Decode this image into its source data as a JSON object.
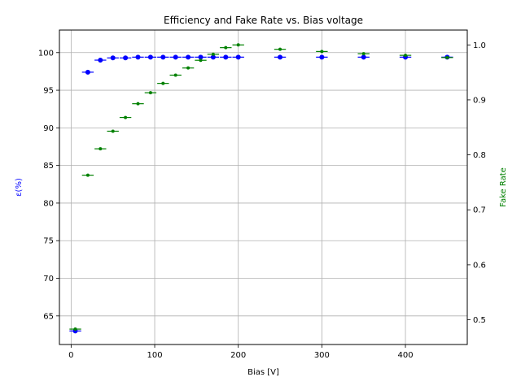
{
  "chart_data": {
    "type": "scatter",
    "title": "Efficiency and Fake Rate vs. Bias voltage",
    "xlabel": "Bias [V]",
    "ylabel_left": "ε(%)",
    "ylabel_right": "Fake Rate",
    "xlim": [
      -14,
      474
    ],
    "ylim_left": [
      61.2,
      103.0
    ],
    "ylim_right": [
      0.455,
      1.027
    ],
    "x_ticks": [
      0,
      100,
      200,
      300,
      400
    ],
    "y_left_ticks": [
      65,
      70,
      75,
      80,
      85,
      90,
      95,
      100
    ],
    "y_right_ticks": [
      0.5,
      0.6,
      0.7,
      0.8,
      0.9,
      1.0
    ],
    "grid": true,
    "series": [
      {
        "axis": "left",
        "color": "#0000ff",
        "marker": "circle",
        "points": [
          {
            "x": 5,
            "y": 63.0
          },
          {
            "x": 20,
            "y": 97.4
          },
          {
            "x": 35,
            "y": 99.0
          },
          {
            "x": 50,
            "y": 99.3
          },
          {
            "x": 65,
            "y": 99.3
          },
          {
            "x": 80,
            "y": 99.4
          },
          {
            "x": 95,
            "y": 99.4
          },
          {
            "x": 110,
            "y": 99.4
          },
          {
            "x": 125,
            "y": 99.4
          },
          {
            "x": 140,
            "y": 99.4
          },
          {
            "x": 155,
            "y": 99.4
          },
          {
            "x": 170,
            "y": 99.4
          },
          {
            "x": 185,
            "y": 99.4
          },
          {
            "x": 200,
            "y": 99.4
          },
          {
            "x": 250,
            "y": 99.4
          },
          {
            "x": 300,
            "y": 99.4
          },
          {
            "x": 350,
            "y": 99.4
          },
          {
            "x": 400,
            "y": 99.4
          },
          {
            "x": 450,
            "y": 99.4
          }
        ]
      },
      {
        "axis": "right",
        "color": "#008000",
        "marker": "point",
        "points": [
          {
            "x": 5,
            "y": 0.483
          },
          {
            "x": 20,
            "y": 0.763
          },
          {
            "x": 35,
            "y": 0.811
          },
          {
            "x": 50,
            "y": 0.843
          },
          {
            "x": 65,
            "y": 0.868
          },
          {
            "x": 80,
            "y": 0.893
          },
          {
            "x": 95,
            "y": 0.913
          },
          {
            "x": 110,
            "y": 0.93
          },
          {
            "x": 125,
            "y": 0.945
          },
          {
            "x": 140,
            "y": 0.958
          },
          {
            "x": 155,
            "y": 0.972
          },
          {
            "x": 170,
            "y": 0.983
          },
          {
            "x": 185,
            "y": 0.995
          },
          {
            "x": 200,
            "y": 1.0
          },
          {
            "x": 250,
            "y": 0.992
          },
          {
            "x": 300,
            "y": 0.988
          },
          {
            "x": 350,
            "y": 0.984
          },
          {
            "x": 400,
            "y": 0.981
          },
          {
            "x": 450,
            "y": 0.977
          }
        ]
      }
    ]
  }
}
